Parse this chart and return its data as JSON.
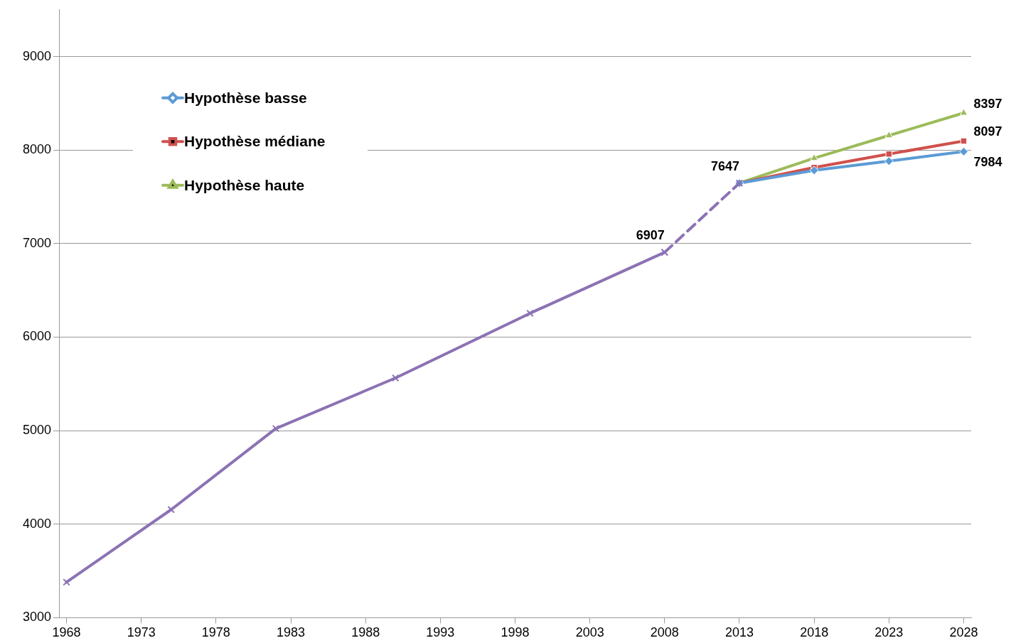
{
  "chart_data": {
    "type": "line",
    "xlim": [
      1967.5,
      2028.5
    ],
    "xticks": [
      1968,
      1973,
      1978,
      1983,
      1988,
      1993,
      1998,
      2003,
      2008,
      2013,
      2018,
      2023,
      2028
    ],
    "ylim": [
      3000,
      9500
    ],
    "yticks": [
      3000,
      4000,
      5000,
      6000,
      7000,
      8000,
      9000
    ],
    "grid": "y",
    "legend": "top left",
    "line_style": "solid",
    "series": [
      {
        "color": "#8c72b4",
        "marker": "cross",
        "x": [
          1968,
          1975,
          1982,
          1990,
          1999,
          2008
        ],
        "values": [
          3380,
          4156,
          5023,
          5563,
          6255,
          6907
        ],
        "value_labels": [
          null,
          null,
          null,
          null,
          null,
          "6907"
        ]
      },
      {
        "color": "#8c72b4",
        "marker": "cross",
        "line_style": "dashed",
        "x": [
          2008,
          2013
        ],
        "values": [
          6907,
          7647
        ],
        "value_labels": [
          null,
          "7647"
        ]
      },
      {
        "name": "Hypothèse basse",
        "color": "#5b9bd5",
        "marker": "diamond",
        "x": [
          2013,
          2018,
          2023,
          2028
        ],
        "values": [
          7647,
          7783,
          7882,
          7984
        ],
        "value_labels": [
          null,
          null,
          null,
          "7984"
        ]
      },
      {
        "name": "Hypothèse médiane",
        "color": "#d0504c",
        "marker": "square",
        "x": [
          2013,
          2018,
          2023,
          2028
        ],
        "values": [
          7647,
          7814,
          7958,
          8097
        ],
        "value_labels": [
          null,
          null,
          null,
          "8097"
        ]
      },
      {
        "name": "Hypothèse haute",
        "color": "#9bbb59",
        "marker": "triangle",
        "x": [
          2013,
          2018,
          2023,
          2028
        ],
        "values": [
          7647,
          7913,
          8156,
          8397
        ],
        "value_labels": [
          null,
          null,
          null,
          "8397"
        ]
      }
    ]
  }
}
